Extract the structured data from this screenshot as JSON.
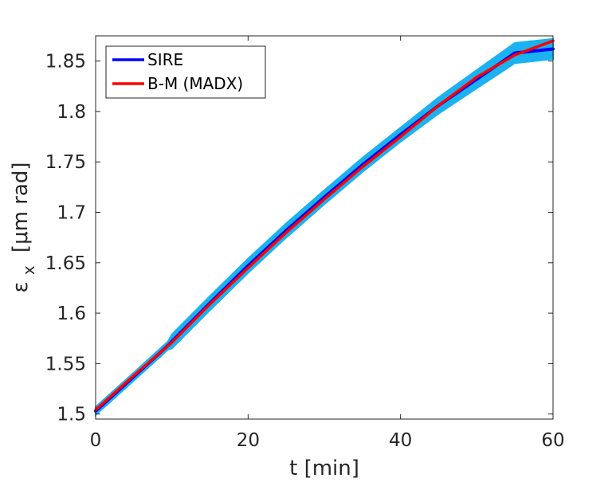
{
  "chart_data": {
    "type": "line",
    "xlabel": "t [min]",
    "ylabel_main": "ε",
    "ylabel_sub": "x",
    "ylabel_unit": "[μm rad]",
    "xlim": [
      0,
      60
    ],
    "ylim": [
      1.495,
      1.875
    ],
    "x_ticks": [
      0,
      20,
      40,
      60
    ],
    "x_tick_labels": [
      "0",
      "20",
      "40",
      "60"
    ],
    "y_ticks": [
      1.5,
      1.55,
      1.6,
      1.65,
      1.7,
      1.75,
      1.8,
      1.85
    ],
    "y_tick_labels": [
      "1.5",
      "1.55",
      "1.6",
      "1.65",
      "1.7",
      "1.75",
      "1.8",
      "1.85"
    ],
    "grid": false,
    "legend_position": "top-left",
    "series": [
      {
        "name": "SIRE",
        "color": "#0000ff",
        "x": [
          0,
          5,
          9.5,
          10,
          15,
          20,
          25,
          30,
          35,
          40,
          45,
          50,
          55,
          60
        ],
        "values": [
          1.503,
          1.537,
          1.568,
          1.572,
          1.61,
          1.647,
          1.682,
          1.715,
          1.747,
          1.777,
          1.806,
          1.832,
          1.858,
          1.862
        ],
        "band_color": "#1ab2f0",
        "band_width": [
          0.004,
          0.004,
          0.004,
          0.007,
          0.007,
          0.007,
          0.007,
          0.007,
          0.007,
          0.007,
          0.008,
          0.009,
          0.01,
          0.01
        ]
      },
      {
        "name": "B-M (MADX)",
        "color": "#ff0000",
        "x": [
          0,
          5,
          10,
          15,
          20,
          25,
          30,
          35,
          40,
          45,
          50,
          55,
          60
        ],
        "values": [
          1.504,
          1.538,
          1.571,
          1.609,
          1.645,
          1.68,
          1.713,
          1.745,
          1.775,
          1.806,
          1.834,
          1.856,
          1.87
        ]
      }
    ]
  }
}
